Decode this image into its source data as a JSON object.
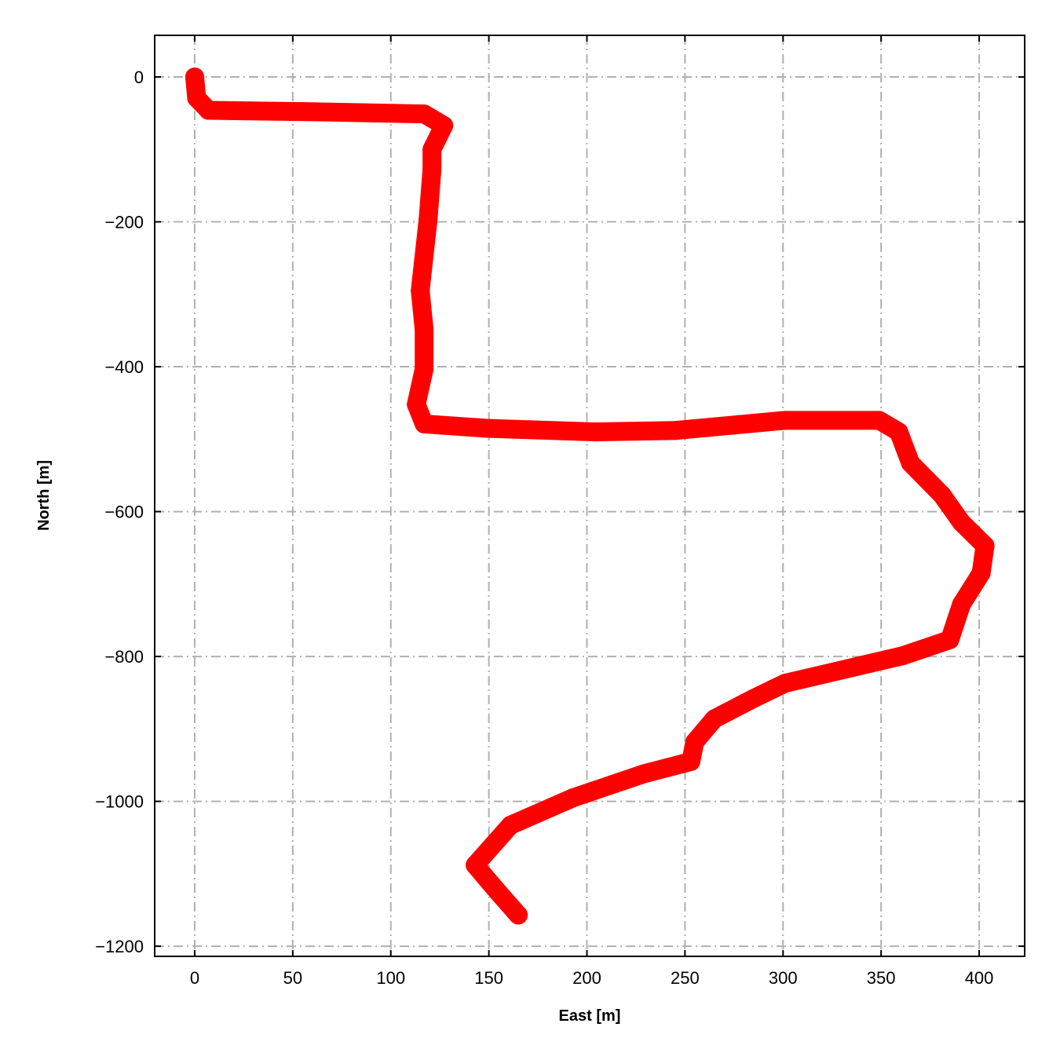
{
  "chart_data": {
    "type": "scatter",
    "title": "",
    "xlabel": "East [m]",
    "ylabel": "North [m]",
    "xlim": [
      -20.4,
      423.2
    ],
    "ylim": [
      -1214,
      57.5
    ],
    "xticks": [
      0,
      50,
      100,
      150,
      200,
      250,
      300,
      350,
      400
    ],
    "yticks": [
      0,
      -200,
      -400,
      -600,
      -800,
      -1000,
      -1200
    ],
    "xtick_labels": [
      "0",
      "50",
      "100",
      "150",
      "200",
      "250",
      "300",
      "350",
      "400"
    ],
    "ytick_labels": [
      "0",
      "−200",
      "−400",
      "−600",
      "−800",
      "−1000",
      "−1200"
    ],
    "grid": true,
    "grid_style": "dash-dot",
    "color": "#ff0000",
    "grid_color": "#b0b0b0",
    "series": [
      {
        "x": [
          0,
          1,
          7,
          61,
          117,
          127,
          121,
          121,
          119,
          115,
          117,
          117,
          113,
          117,
          149,
          205,
          245,
          301,
          349,
          359,
          365,
          381,
          391,
          403,
          401,
          391,
          385,
          361,
          301,
          285,
          265,
          255,
          253,
          229,
          193,
          161,
          143,
          153,
          165
        ],
        "y": [
          0,
          -29,
          -46,
          -48,
          -51,
          -67,
          -100,
          -127,
          -197,
          -295,
          -349,
          -403,
          -452,
          -479,
          -485,
          -490,
          -488,
          -474,
          -474,
          -490,
          -533,
          -577,
          -615,
          -647,
          -685,
          -728,
          -777,
          -799,
          -837,
          -858,
          -886,
          -918,
          -945,
          -962,
          -995,
          -1033,
          -1088,
          -1120,
          -1157
        ]
      }
    ]
  }
}
